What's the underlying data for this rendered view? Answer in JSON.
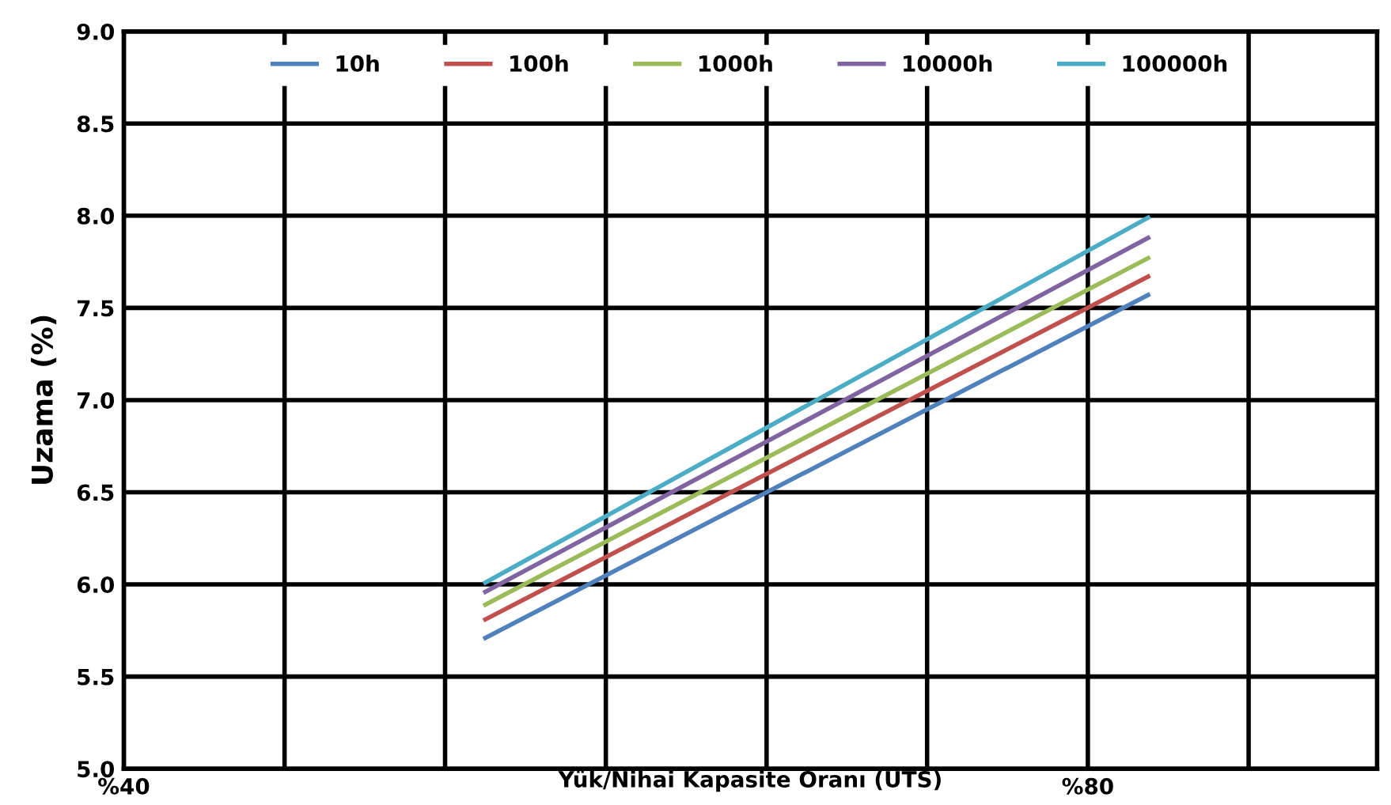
{
  "chart_data": {
    "type": "line",
    "xlabel": "Yük/Nihai Kapasite Oranı (UTS)",
    "ylabel": "Uzama (%)",
    "x": [
      55,
      82.5
    ],
    "series": [
      {
        "name": "10h",
        "color": "#4f81bd",
        "values": [
          5.71,
          7.57
        ]
      },
      {
        "name": "100h",
        "color": "#c0504d",
        "values": [
          5.81,
          7.67
        ]
      },
      {
        "name": "1000h",
        "color": "#9bbb59",
        "values": [
          5.89,
          7.77
        ]
      },
      {
        "name": "10000h",
        "color": "#8064a2",
        "values": [
          5.96,
          7.88
        ]
      },
      {
        "name": "100000h",
        "color": "#4bacc6",
        "values": [
          6.01,
          7.99
        ]
      }
    ],
    "xlim": [
      40,
      92
    ],
    "xticks": [
      {
        "value": 40,
        "label": "%40"
      },
      {
        "value": 46.67,
        "label": null
      },
      {
        "value": 53.33,
        "label": null
      },
      {
        "value": 60,
        "label": null
      },
      {
        "value": 66.67,
        "label": null
      },
      {
        "value": 73.33,
        "label": null
      },
      {
        "value": 80,
        "label": "%80"
      },
      {
        "value": 86.67,
        "label": null
      }
    ],
    "ylim": [
      5,
      9
    ],
    "yticks": [
      {
        "value": 5,
        "label": "5.0"
      },
      {
        "value": 5.5,
        "label": "5.5"
      },
      {
        "value": 6,
        "label": "6.0"
      },
      {
        "value": 6.5,
        "label": "6.5"
      },
      {
        "value": 7,
        "label": "7.0"
      },
      {
        "value": 7.5,
        "label": "7.5"
      },
      {
        "value": 8,
        "label": "8.0"
      },
      {
        "value": 8.5,
        "label": "8.5"
      },
      {
        "value": 9,
        "label": "9.0"
      }
    ],
    "grid": true,
    "legend": "top",
    "marker": "none",
    "line_style": "solid"
  }
}
